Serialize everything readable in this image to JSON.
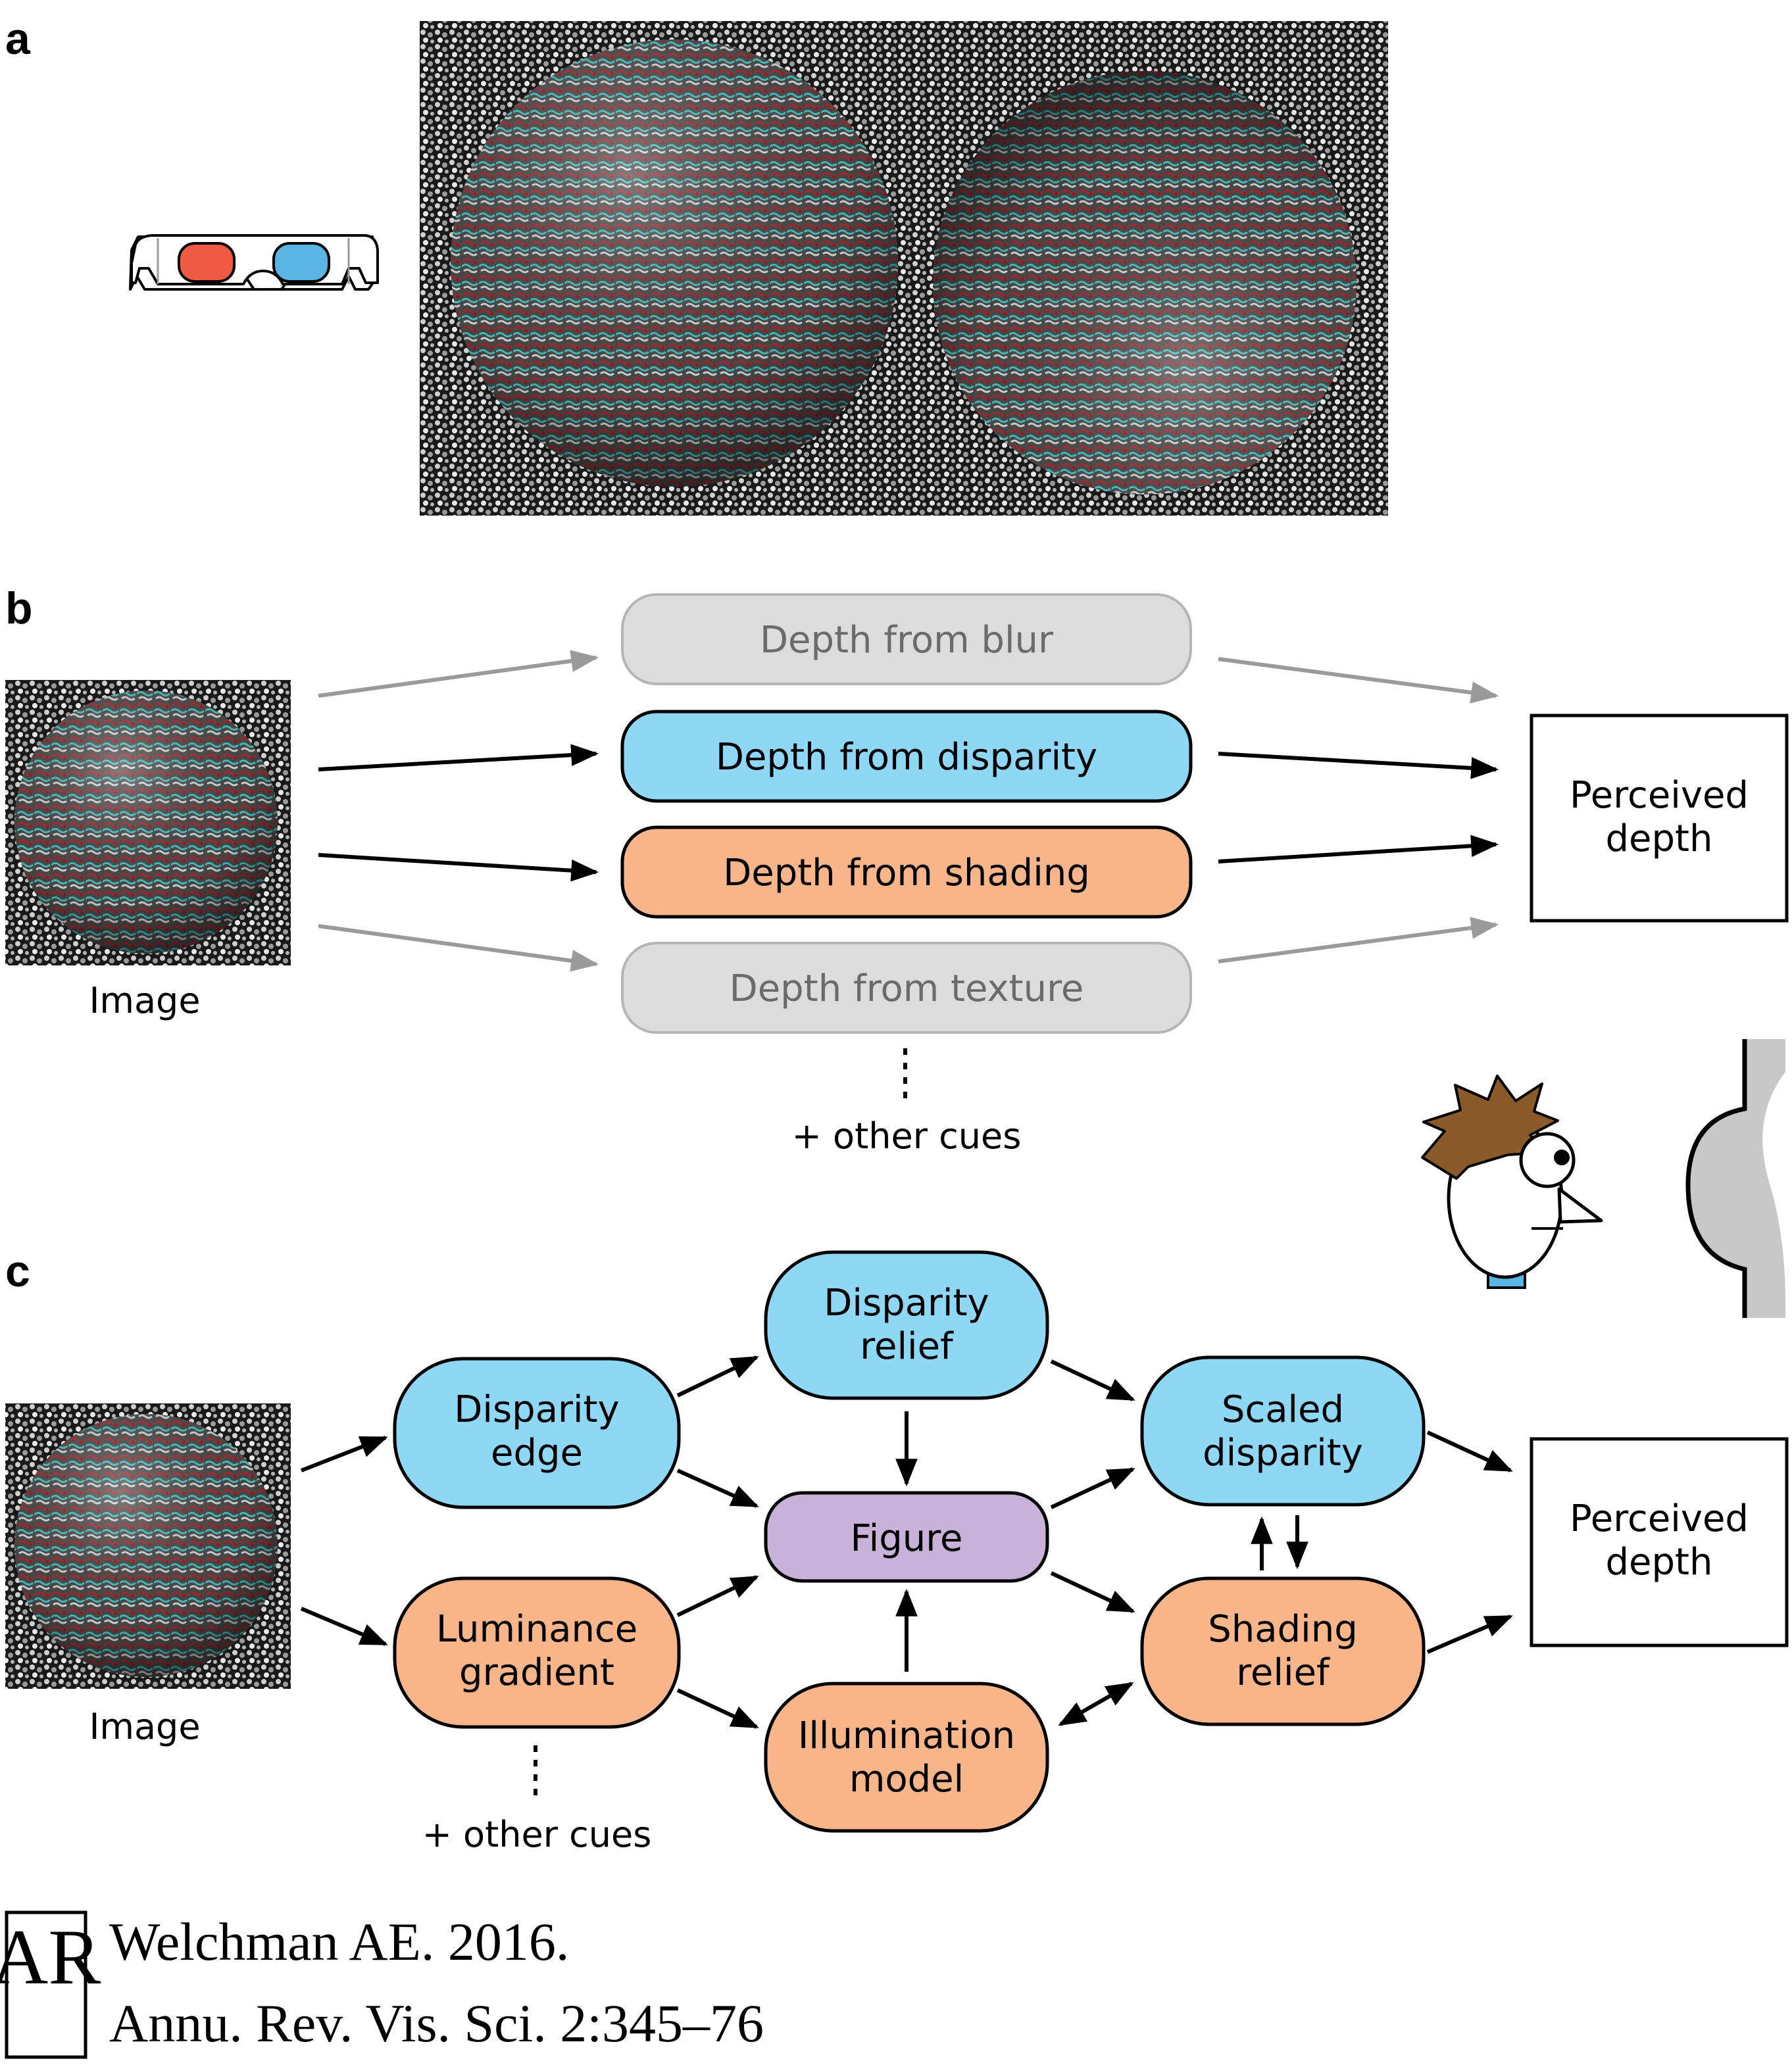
{
  "panels": {
    "a": "a",
    "b": "b",
    "c": "c"
  },
  "panel_b": {
    "cues": [
      {
        "label": "Depth from blur",
        "style": "grey"
      },
      {
        "label": "Depth from disparity",
        "style": "blue"
      },
      {
        "label": "Depth from shading",
        "style": "orange"
      },
      {
        "label": "Depth from texture",
        "style": "grey"
      }
    ],
    "image_label": "Image",
    "other_cues": "+ other cues",
    "output": [
      "Perceived",
      "depth"
    ]
  },
  "panel_c": {
    "image_label": "Image",
    "nodes": {
      "disparity_edge": [
        "Disparity",
        "edge"
      ],
      "luminance_gradient": [
        "Luminance",
        "gradient"
      ],
      "disparity_relief": [
        "Disparity",
        "relief"
      ],
      "figure": [
        "Figure"
      ],
      "illumination_model": [
        "Illumination",
        "model"
      ],
      "scaled_disparity": [
        "Scaled",
        "disparity"
      ],
      "shading_relief": [
        "Shading",
        "relief"
      ]
    },
    "other_cues": "+ other cues",
    "output": [
      "Perceived",
      "depth"
    ]
  },
  "citation": {
    "logo": "AR",
    "line1": "Welchman AE. 2016.",
    "line2": "Annu. Rev. Vis. Sci. 2:345–76"
  },
  "colors": {
    "blue": "#8ed8f5",
    "orange": "#f8b58a",
    "purple": "#c9b2d9",
    "grey": "#dcdcdc",
    "grey_text": "#6b6b6b",
    "grey_arrow": "#9a9a9a",
    "red_lens": "#ef5a45",
    "blue_lens": "#5ab4e4",
    "hair": "#8a5a2b"
  }
}
